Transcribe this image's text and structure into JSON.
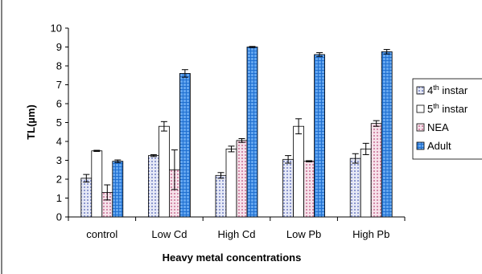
{
  "chart_data": {
    "type": "bar",
    "xlabel": "Heavy metal concentrations",
    "ylabel": "TL(µm)",
    "ylim": [
      0,
      10
    ],
    "yticks": [
      0,
      1,
      2,
      3,
      4,
      5,
      6,
      7,
      8,
      9,
      10
    ],
    "grid": false,
    "legend_position": "right",
    "categories": [
      "control",
      "Low Cd",
      "High Cd",
      "Low Pb",
      "High Pb"
    ],
    "series": [
      {
        "name": "4th instar",
        "name_base": "4",
        "name_sup": "th",
        "name_rest": "  instar",
        "pattern": "dots-blue",
        "color": "#c8cde6",
        "values": [
          2.05,
          3.25,
          2.2,
          3.05,
          3.1
        ],
        "errors": [
          0.2,
          0.05,
          0.15,
          0.2,
          0.25
        ]
      },
      {
        "name": "5th instar",
        "name_base": "5",
        "name_sup": "th",
        "name_rest": "  instar",
        "pattern": "white",
        "color": "#ffffff",
        "values": [
          3.5,
          4.8,
          3.6,
          4.8,
          3.6
        ],
        "errors": [
          0.03,
          0.25,
          0.15,
          0.4,
          0.3
        ]
      },
      {
        "name": "NEA",
        "pattern": "dots-pink",
        "color": "#eac4d4",
        "values": [
          1.3,
          2.5,
          4.05,
          2.95,
          4.95
        ],
        "errors": [
          0.4,
          1.05,
          0.1,
          0.03,
          0.15
        ]
      },
      {
        "name": "Adult",
        "pattern": "grid-blue",
        "color": "#2f7fd8",
        "values": [
          2.95,
          7.6,
          9.0,
          8.6,
          8.75
        ],
        "errors": [
          0.07,
          0.2,
          0.03,
          0.1,
          0.12
        ]
      }
    ]
  }
}
